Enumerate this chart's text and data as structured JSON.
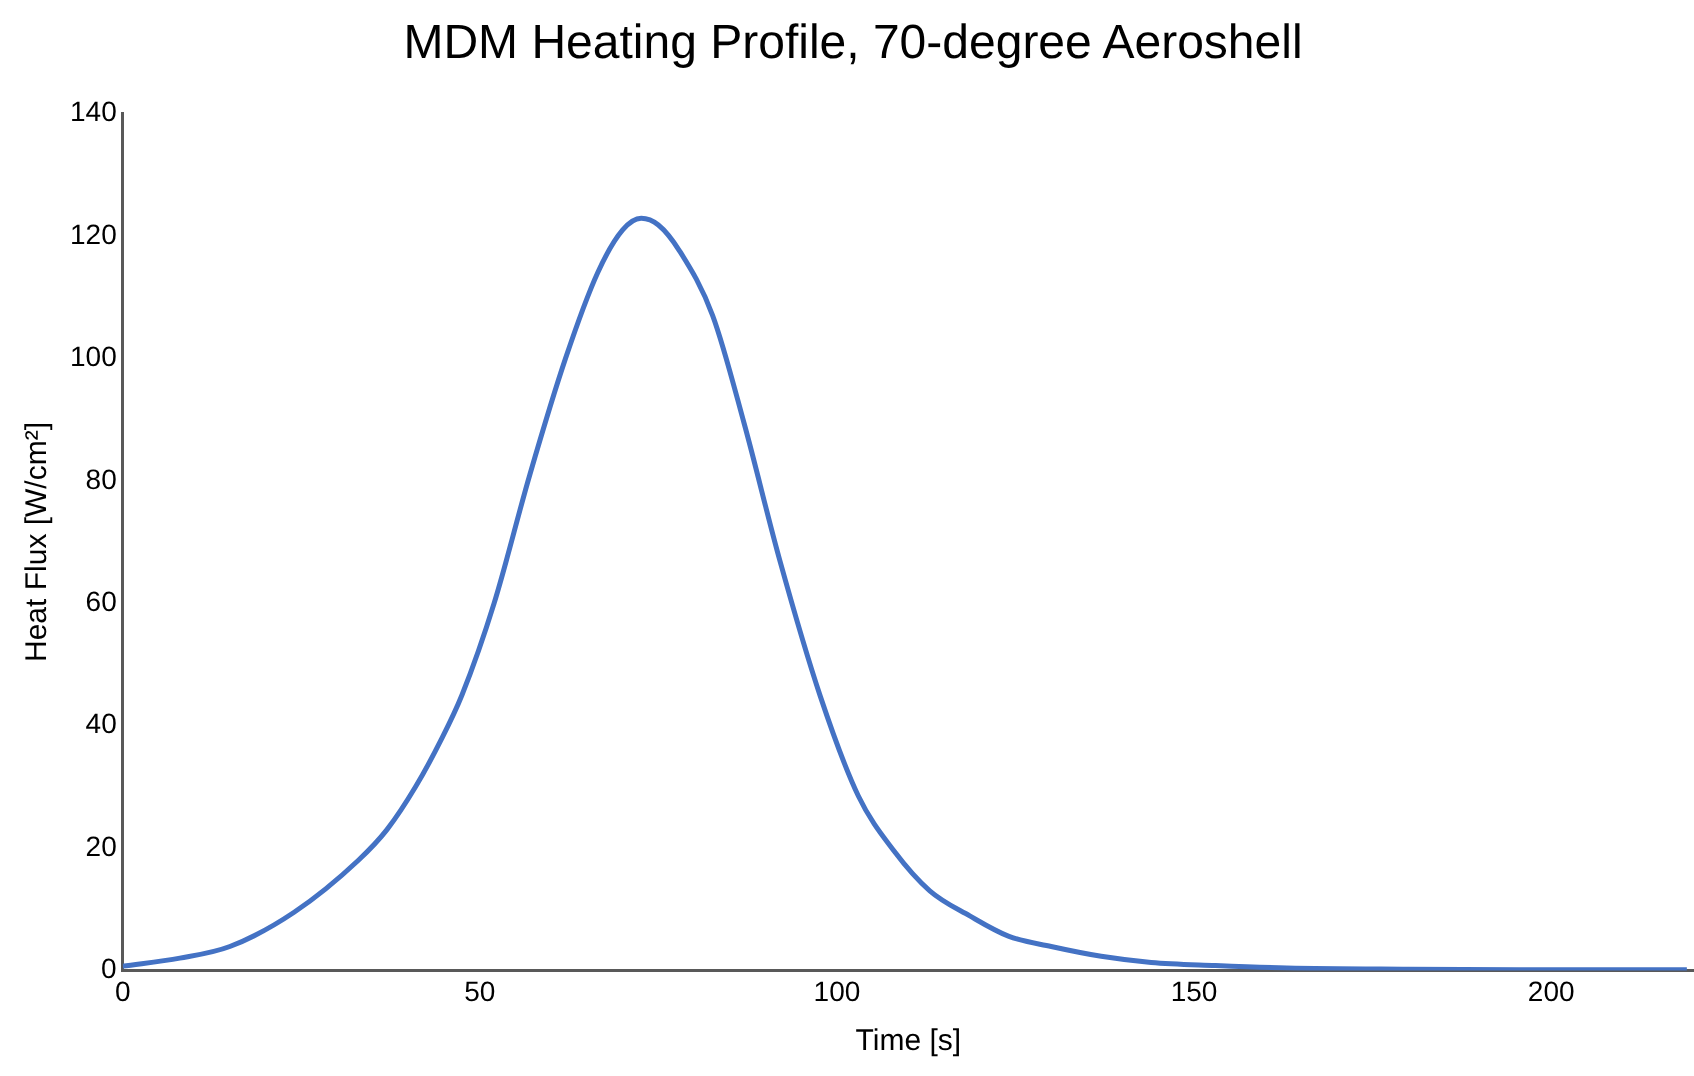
{
  "chart_data": {
    "type": "line",
    "title": "MDM Heating Profile, 70-degree Aeroshell",
    "xlabel": "Time [s]",
    "ylabel": "Heat Flux [W/cm²]",
    "x": [
      0,
      8,
      15,
      24,
      33,
      37,
      41,
      44.5,
      47.5,
      52,
      57,
      62,
      66.5,
      70,
      72.6,
      75,
      78,
      82.6,
      87,
      92,
      97.7,
      103,
      108,
      113,
      118.6,
      124,
      130,
      137,
      144,
      153,
      163,
      180,
      200,
      219
    ],
    "series": [
      {
        "color": "#4472c4",
        "values": [
          0.7,
          2,
          3.9,
          9.5,
          18,
          23,
          30,
          37.5,
          45,
          60,
          81,
          100,
          114,
          121,
          122.9,
          121.8,
          117.5,
          107,
          89.4,
          67,
          44.7,
          28.5,
          19.5,
          13,
          8.9,
          5.6,
          3.9,
          2.3,
          1.3,
          0.8,
          0.4,
          0.2,
          0.1,
          0.1
        ]
      }
    ],
    "xlim": [
      0,
      220
    ],
    "xticks": [
      0,
      50,
      100,
      150,
      200
    ],
    "ylim": [
      0,
      140
    ],
    "yticks": [
      0,
      20,
      40,
      60,
      80,
      100,
      120,
      140
    ],
    "grid": false,
    "legend": false,
    "marker": "none",
    "line_style": "solid"
  }
}
